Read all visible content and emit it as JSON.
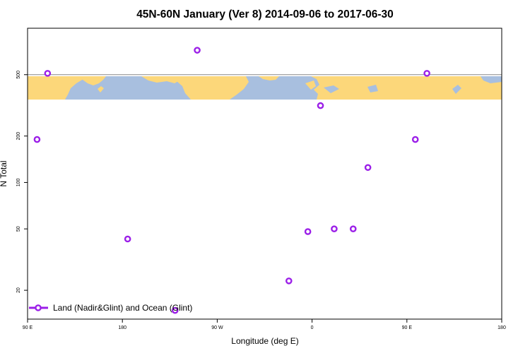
{
  "chart_data": {
    "type": "scatter",
    "title": "45N-60N January (Ver 8)   2014-09-06 to 2017-06-30",
    "xlabel": "Longitude (deg E)",
    "ylabel": "N Total",
    "x_ticks": [
      {
        "value": 90,
        "label": "90 E"
      },
      {
        "value": 180,
        "label": "180"
      },
      {
        "value": 270,
        "label": "90 W"
      },
      {
        "value": 360,
        "label": "0"
      },
      {
        "value": 450,
        "label": "90 E"
      },
      {
        "value": 540,
        "label": "180"
      }
    ],
    "xlim": [
      90,
      540
    ],
    "y_scale": "log",
    "ylim": [
      13,
      1000
    ],
    "y_ticks": [
      {
        "value": 20,
        "label": "20"
      },
      {
        "value": 50,
        "label": "50"
      },
      {
        "value": 100,
        "label": "100"
      },
      {
        "value": 200,
        "label": "200"
      },
      {
        "value": 500,
        "label": "500"
      }
    ],
    "reference_line": 500,
    "legend_position": "bottom-left",
    "series": [
      {
        "name": "Land (Nadir&Glint) and Ocean (Glint)",
        "color": "#9b1fe8",
        "points": [
          {
            "x": 99,
            "y": 190
          },
          {
            "x": 109,
            "y": 510
          },
          {
            "x": 185,
            "y": 43
          },
          {
            "x": 230,
            "y": 14.8
          },
          {
            "x": 251,
            "y": 720
          },
          {
            "x": 338,
            "y": 23
          },
          {
            "x": 356,
            "y": 48
          },
          {
            "x": 368,
            "y": 315
          },
          {
            "x": 381,
            "y": 50
          },
          {
            "x": 399,
            "y": 50
          },
          {
            "x": 413,
            "y": 125
          },
          {
            "x": 458,
            "y": 190
          },
          {
            "x": 469,
            "y": 510
          }
        ]
      }
    ]
  }
}
